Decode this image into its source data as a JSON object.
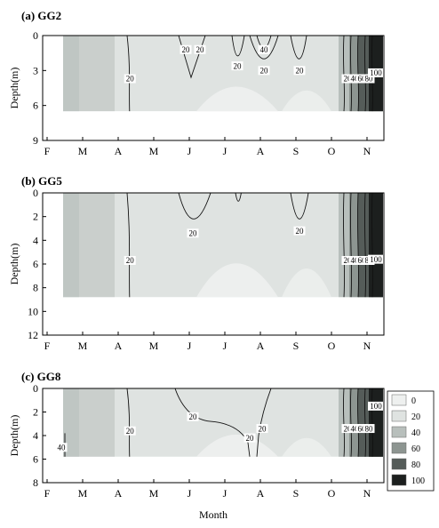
{
  "chart_data": [
    {
      "type": "heatmap",
      "title": "(a) GG2",
      "ylabel": "Depth(m)",
      "xlabel": "",
      "categories": [
        "F",
        "M",
        "A",
        "M",
        "J",
        "J",
        "A",
        "S",
        "O",
        "N"
      ],
      "yticks": [
        0,
        3,
        6,
        9
      ],
      "ylim": [
        9,
        0
      ],
      "data_depth_range": [
        0,
        6.5
      ],
      "contour_labels": [
        {
          "x": 3.9,
          "y": 1.2,
          "text": "20"
        },
        {
          "x": 4.3,
          "y": 1.2,
          "text": "20"
        },
        {
          "x": 5.35,
          "y": 2.6,
          "text": "20"
        },
        {
          "x": 6.1,
          "y": 1.2,
          "text": "40"
        },
        {
          "x": 6.1,
          "y": 3.0,
          "text": "20"
        },
        {
          "x": 7.1,
          "y": 3.0,
          "text": "20"
        },
        {
          "x": 2.33,
          "y": 3.7,
          "text": "20"
        },
        {
          "x": 8.45,
          "y": 3.7,
          "text": "20"
        },
        {
          "x": 8.65,
          "y": 3.7,
          "text": "40"
        },
        {
          "x": 8.85,
          "y": 3.7,
          "text": "60"
        },
        {
          "x": 9.05,
          "y": 3.7,
          "text": "80"
        },
        {
          "x": 9.25,
          "y": 3.2,
          "text": "100"
        }
      ]
    },
    {
      "type": "heatmap",
      "title": "(b) GG5",
      "ylabel": "Depth(m)",
      "xlabel": "",
      "categories": [
        "F",
        "M",
        "A",
        "M",
        "J",
        "J",
        "A",
        "S",
        "O",
        "N"
      ],
      "yticks": [
        0,
        2,
        4,
        6,
        8,
        10,
        12
      ],
      "ylim": [
        12,
        0
      ],
      "data_depth_range": [
        0,
        8.8
      ],
      "contour_labels": [
        {
          "x": 4.1,
          "y": 3.4,
          "text": "20"
        },
        {
          "x": 7.1,
          "y": 3.2,
          "text": "20"
        },
        {
          "x": 2.33,
          "y": 5.7,
          "text": "20"
        },
        {
          "x": 8.45,
          "y": 5.7,
          "text": "20"
        },
        {
          "x": 8.65,
          "y": 5.7,
          "text": "40"
        },
        {
          "x": 8.85,
          "y": 5.7,
          "text": "60"
        },
        {
          "x": 9.05,
          "y": 5.7,
          "text": "80"
        },
        {
          "x": 9.25,
          "y": 5.6,
          "text": "100"
        }
      ]
    },
    {
      "type": "heatmap",
      "title": "(c) GG8",
      "ylabel": "Depth(m)",
      "xlabel": "Month",
      "categories": [
        "F",
        "M",
        "A",
        "M",
        "J",
        "J",
        "A",
        "S",
        "O",
        "N"
      ],
      "yticks": [
        0,
        2,
        4,
        6,
        8
      ],
      "ylim": [
        8,
        0
      ],
      "data_depth_range": [
        0,
        5.8
      ],
      "legend_levels": [
        "0",
        "20",
        "40",
        "60",
        "80",
        "100"
      ],
      "contour_labels": [
        {
          "x": 0.4,
          "y": 5.0,
          "text": "40"
        },
        {
          "x": 2.33,
          "y": 3.6,
          "text": "20"
        },
        {
          "x": 4.1,
          "y": 2.4,
          "text": "20"
        },
        {
          "x": 5.7,
          "y": 4.2,
          "text": "20"
        },
        {
          "x": 6.05,
          "y": 3.4,
          "text": "20"
        },
        {
          "x": 8.45,
          "y": 3.4,
          "text": "20"
        },
        {
          "x": 8.65,
          "y": 3.4,
          "text": "40"
        },
        {
          "x": 8.85,
          "y": 3.4,
          "text": "60"
        },
        {
          "x": 9.05,
          "y": 3.4,
          "text": "80"
        },
        {
          "x": 9.25,
          "y": 1.5,
          "text": "100"
        }
      ]
    }
  ],
  "colors": {
    "level_0": "#eef0ef",
    "level_20": "#dfe3e1",
    "level_40": "#b8bfbc",
    "level_60": "#8d9591",
    "level_80": "#555c59",
    "level_100": "#1c1f1e",
    "background_light": "#e3e7e5"
  }
}
